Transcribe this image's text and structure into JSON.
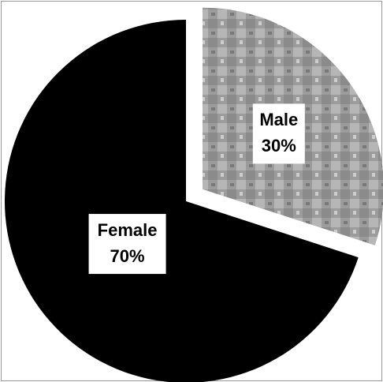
{
  "chart_data": {
    "type": "pie",
    "categories": [
      "Male",
      "Female"
    ],
    "values": [
      30,
      70
    ],
    "value_labels": [
      "30%",
      "70%"
    ],
    "colors": [
      "#9c9c9c",
      "#000000"
    ]
  }
}
